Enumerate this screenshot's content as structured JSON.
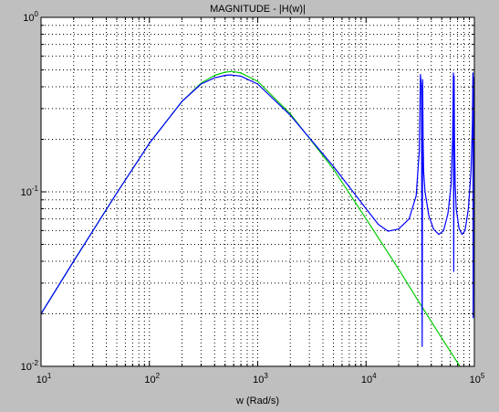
{
  "chart_data": {
    "type": "line",
    "title": "MAGNITUDE - |H(w)|",
    "xlabel": "w (Rad/s)",
    "ylabel": "",
    "xscale": "log",
    "yscale": "log",
    "xlim": [
      10,
      100000
    ],
    "ylim": [
      0.01,
      1
    ],
    "grid": true,
    "grid_style": "dotted",
    "legend": "none",
    "x_ticks": [
      {
        "base": "10",
        "exp": "1",
        "value": 10
      },
      {
        "base": "10",
        "exp": "2",
        "value": 100
      },
      {
        "base": "10",
        "exp": "3",
        "value": 1000
      },
      {
        "base": "10",
        "exp": "4",
        "value": 10000
      },
      {
        "base": "10",
        "exp": "5",
        "value": 100000
      }
    ],
    "y_ticks": [
      {
        "base": "10",
        "exp": "-2",
        "value": 0.01
      },
      {
        "base": "10",
        "exp": "-1",
        "value": 0.1
      },
      {
        "base": "10",
        "exp": "0",
        "value": 1
      }
    ],
    "series": [
      {
        "color": "#00cc00",
        "x": [
          10,
          20,
          50,
          100,
          200,
          300,
          400,
          500,
          580,
          700,
          1000,
          2000,
          5000,
          10000,
          20000,
          30000,
          50000,
          70000,
          100000
        ],
        "y": [
          0.02,
          0.04,
          0.0985,
          0.19,
          0.33,
          0.42,
          0.465,
          0.485,
          0.49,
          0.48,
          0.43,
          0.28,
          0.135,
          0.07,
          0.036,
          0.024,
          0.0145,
          0.0105,
          0.0074
        ]
      },
      {
        "color": "#0000ff",
        "x": [
          10,
          20,
          50,
          100,
          200,
          300,
          400,
          500,
          560,
          700,
          1000,
          2000,
          5000,
          10000,
          13000,
          16000,
          20000,
          25000,
          29000,
          31000,
          31800,
          32500,
          33000,
          33300,
          33600,
          34000,
          35000,
          38000,
          42000,
          47000,
          52000,
          57000,
          61000,
          63000,
          64000,
          64500,
          65000,
          65500,
          66500,
          68000,
          72000,
          77000,
          82000,
          88000,
          93000,
          96000,
          97000,
          97500,
          98000,
          99000,
          100000
        ],
        "y": [
          0.02,
          0.04,
          0.0985,
          0.19,
          0.33,
          0.415,
          0.45,
          0.465,
          0.468,
          0.46,
          0.415,
          0.275,
          0.14,
          0.08,
          0.065,
          0.0595,
          0.0612,
          0.07,
          0.095,
          0.17,
          0.47,
          0.4,
          0.013,
          0.44,
          0.2,
          0.13,
          0.1,
          0.073,
          0.061,
          0.057,
          0.06,
          0.075,
          0.11,
          0.2,
          0.48,
          0.035,
          0.46,
          0.2,
          0.11,
          0.08,
          0.062,
          0.057,
          0.06,
          0.08,
          0.13,
          0.25,
          0.48,
          0.019,
          0.45,
          0.2,
          0.48
        ]
      }
    ]
  }
}
